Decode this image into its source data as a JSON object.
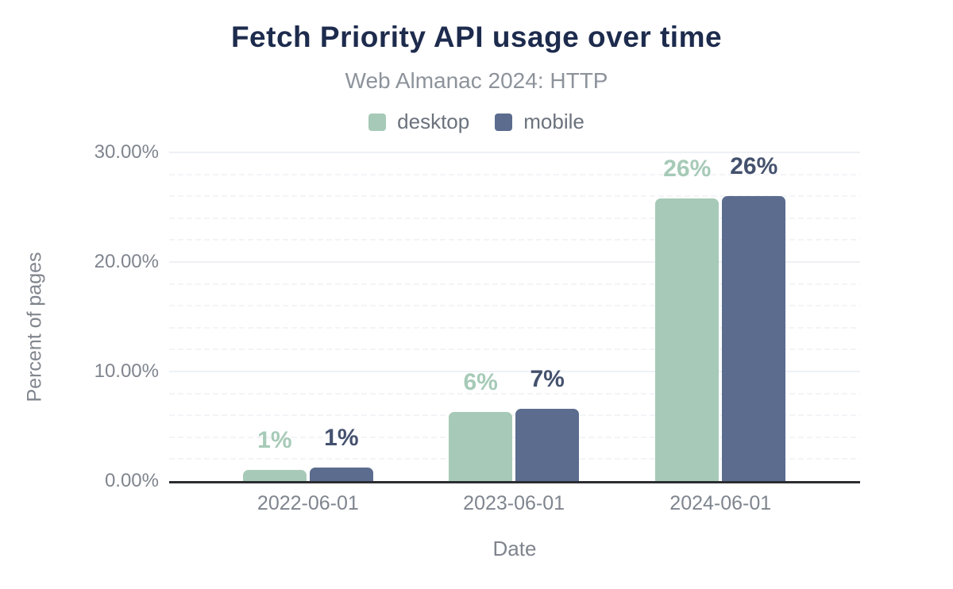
{
  "header": {
    "title": "Fetch Priority API usage over time",
    "subtitle": "Web Almanac 2024: HTTP"
  },
  "chart_data": {
    "type": "bar",
    "title": "Fetch Priority API usage over time",
    "subtitle": "Web Almanac 2024: HTTP",
    "xlabel": "Date",
    "ylabel": "Percent of pages",
    "categories": [
      "2022-06-01",
      "2023-06-01",
      "2024-06-01"
    ],
    "series": [
      {
        "name": "desktop",
        "color": "#a6cab7",
        "label_color": "#a6cab7",
        "values": [
          1.0,
          6.3,
          25.8
        ],
        "labels": [
          "1%",
          "6%",
          "26%"
        ]
      },
      {
        "name": "mobile",
        "color": "#5b6c8e",
        "label_color": "#44516e",
        "values": [
          1.2,
          6.6,
          26.0
        ],
        "labels": [
          "1%",
          "7%",
          "26%"
        ]
      }
    ],
    "y_ticks": [
      {
        "label": "0.00%",
        "value": 0
      },
      {
        "label": "10.00%",
        "value": 10
      },
      {
        "label": "20.00%",
        "value": 20
      },
      {
        "label": "30.00%",
        "value": 30
      }
    ],
    "ylim": [
      0,
      30
    ],
    "minor_grid_step": 2,
    "grid": true,
    "legend_position": "top",
    "group_centers_pct": [
      20.1,
      49.9,
      79.8
    ]
  },
  "colors": {
    "title": "#1d2b4d",
    "subtitle": "#8d939b",
    "axis_text": "#7f858e",
    "axis_line": "#2c2d31",
    "grid_major": "#eef0f4",
    "grid_minor": "#f3f4f7",
    "background": "#ffffff"
  }
}
